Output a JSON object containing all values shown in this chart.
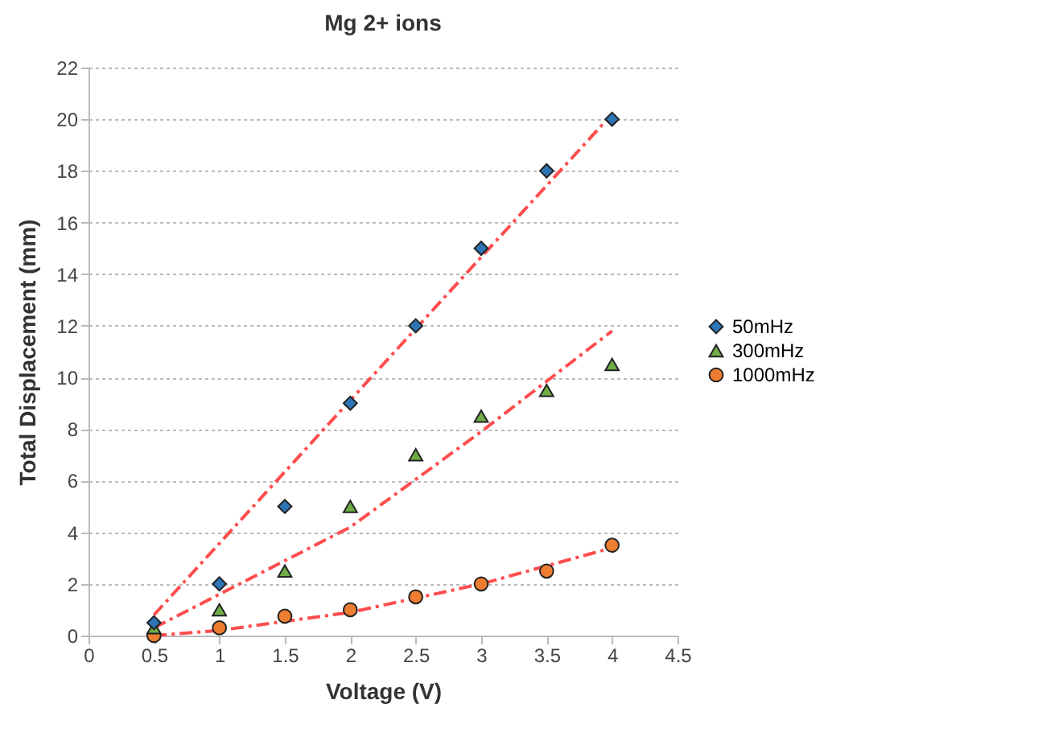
{
  "chart_data": {
    "type": "scatter",
    "title": "Mg 2+ ions",
    "xlabel": "Voltage (V)",
    "ylabel": "Total Displacement (mm)",
    "x": [
      0.5,
      1,
      1.5,
      2,
      2.5,
      3,
      3.5,
      4
    ],
    "series": [
      {
        "name": "50mHz",
        "color": "#2e75b6",
        "marker": "diamond",
        "values": [
          0.5,
          2,
          5,
          9,
          12,
          15,
          18,
          20
        ]
      },
      {
        "name": "300mHz",
        "color": "#70ad47",
        "marker": "triangle",
        "values": [
          0.3,
          1,
          2.5,
          5,
          7,
          8.5,
          9.5,
          10.5
        ]
      },
      {
        "name": "1000mHz",
        "color": "#ed7d31",
        "marker": "circle",
        "values": [
          0,
          0.3,
          0.75,
          1,
          1.5,
          2,
          2.5,
          3.5
        ]
      },
      {
        "type": "line",
        "color": "#ff4d4d",
        "line_style": "dashed",
        "x": [
          0.5,
          4
        ],
        "values": [
          0.8,
          20.2
        ]
      },
      {
        "type": "line",
        "color": "#ff4d4d",
        "line_style": "dashed",
        "x": [
          0.5,
          2,
          3,
          4
        ],
        "values": [
          0.3,
          4.2,
          7.9,
          11.8
        ]
      },
      {
        "type": "line",
        "color": "#ff4d4d",
        "line_style": "dashed",
        "x": [
          0.5,
          1,
          2,
          3,
          4
        ],
        "values": [
          0,
          0.2,
          0.9,
          2,
          3.4
        ]
      }
    ],
    "xlim": [
      0,
      4.5
    ],
    "xticks": [
      0,
      0.5,
      1,
      1.5,
      2,
      2.5,
      3,
      3.5,
      4,
      4.5
    ],
    "ylim": [
      0,
      22
    ],
    "yticks": [
      0,
      2,
      4,
      6,
      8,
      10,
      12,
      14,
      16,
      18,
      20,
      22
    ],
    "grid": "y",
    "legend": "right"
  }
}
